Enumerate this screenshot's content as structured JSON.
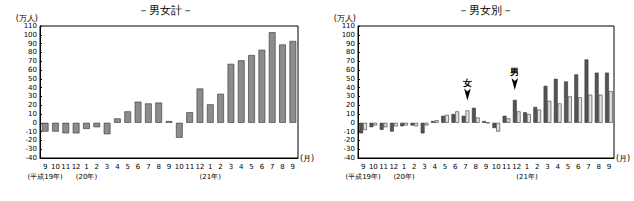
{
  "chart_data": [
    {
      "type": "bar",
      "title": "－男女計－",
      "y_label": "(万人)",
      "x_label": "(月)",
      "categories": [
        "9\n(平成19年)",
        "10",
        "11",
        "12",
        "1\n(20年)",
        "2",
        "3",
        "4",
        "5",
        "6",
        "7",
        "8",
        "9",
        "10",
        "11",
        "12",
        "1\n(21年)",
        "2",
        "3",
        "4",
        "5",
        "6",
        "7",
        "8",
        "9"
      ],
      "values": [
        -10,
        -10,
        -12,
        -12,
        -7,
        -5,
        -13,
        5,
        13,
        24,
        22,
        23,
        2,
        -17,
        12,
        39,
        21,
        33,
        67,
        71,
        77,
        83,
        103,
        89,
        93
      ],
      "color": "#8c8c8c",
      "ylim": [
        -40,
        110
      ],
      "yticks": [
        -40,
        -30,
        -20,
        -10,
        0,
        10,
        20,
        30,
        40,
        50,
        60,
        70,
        80,
        90,
        100,
        110
      ],
      "grid": false
    },
    {
      "type": "bar",
      "title": "－男女別－",
      "y_label": "(万人)",
      "x_label": "(月)",
      "categories": [
        "9\n(平成19年)",
        "10",
        "11",
        "12",
        "1\n(20年)",
        "2",
        "3",
        "4",
        "5",
        "6",
        "7",
        "8",
        "9",
        "10",
        "11",
        "12",
        "1\n(21年)",
        "2",
        "3",
        "4",
        "5",
        "6",
        "7",
        "8",
        "9"
      ],
      "series": [
        {
          "name": "男",
          "color": "#555555",
          "values": [
            -12,
            -5,
            -8,
            -10,
            -4,
            -3,
            -12,
            2,
            8,
            10,
            8,
            17,
            2,
            -6,
            8,
            26,
            12,
            18,
            42,
            50,
            47,
            55,
            72,
            57,
            57
          ]
        },
        {
          "name": "女",
          "color": "#e0e0e0",
          "values": [
            -8,
            -3,
            -5,
            -4,
            -3,
            -4,
            -3,
            3,
            9,
            13,
            14,
            6,
            0,
            -10,
            5,
            13,
            10,
            15,
            25,
            22,
            30,
            29,
            32,
            32,
            36
          ]
        }
      ],
      "annotations": [
        {
          "text": "女",
          "series": "女",
          "category_index": 10
        },
        {
          "text": "男",
          "series": "男",
          "category_index": 15
        }
      ],
      "ylim": [
        -40,
        110
      ],
      "yticks": [
        -40,
        -30,
        -20,
        -10,
        0,
        10,
        20,
        30,
        40,
        50,
        60,
        70,
        80,
        90,
        100,
        110
      ],
      "grid": false
    }
  ]
}
